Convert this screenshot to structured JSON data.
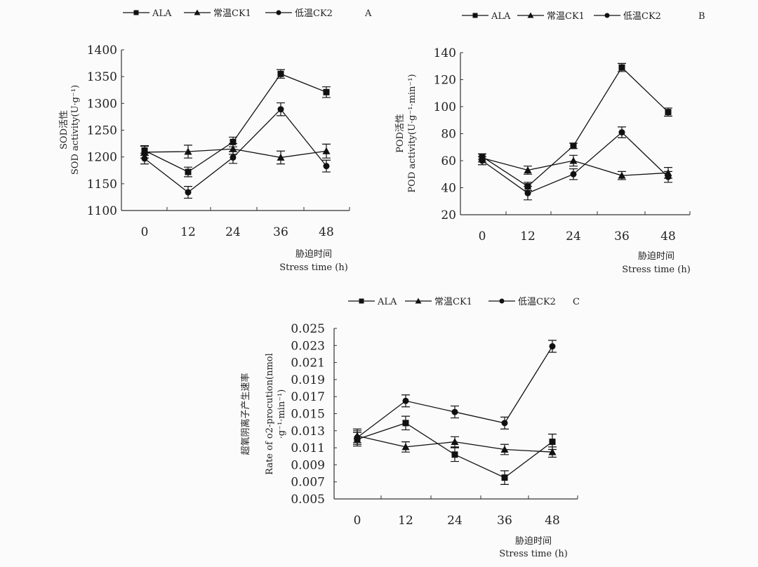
{
  "chart_data": [
    {
      "type": "line",
      "panel": "A",
      "ylabel": [
        "SOD活性",
        "SOD activity(U·g⁻¹)"
      ],
      "xlabel": [
        "胁迫时间",
        "Stress time (h)"
      ],
      "categories": [
        "0",
        "12",
        "24",
        "36",
        "48"
      ],
      "ylim": [
        1100,
        1400
      ],
      "yticks": [
        "1100",
        "1150",
        "1200",
        "1250",
        "1300",
        "1350",
        "1400"
      ],
      "series": [
        {
          "name": "ALA",
          "marker": "square",
          "values": [
            1212,
            1172,
            1228,
            1355,
            1321
          ],
          "errors": [
            9,
            9,
            9,
            8,
            10
          ]
        },
        {
          "name": "常温CK1",
          "marker": "triangle",
          "values": [
            1209,
            1210,
            1215,
            1199,
            1211
          ],
          "errors": [
            11,
            12,
            10,
            12,
            13
          ]
        },
        {
          "name": "低温CK2",
          "marker": "circle",
          "values": [
            1197,
            1134,
            1199,
            1289,
            1183
          ],
          "errors": [
            10,
            11,
            11,
            12,
            11
          ]
        }
      ]
    },
    {
      "type": "line",
      "panel": "B",
      "ylabel": [
        "POD活性",
        "POD activity(U·g⁻¹·min⁻¹)"
      ],
      "xlabel": [
        "胁迫时间",
        "Stress time (h)"
      ],
      "categories": [
        "0",
        "12",
        "24",
        "36",
        "48"
      ],
      "ylim": [
        20,
        140
      ],
      "yticks": [
        "20",
        "40",
        "60",
        "80",
        "100",
        "120",
        "140"
      ],
      "series": [
        {
          "name": "ALA",
          "marker": "square",
          "values": [
            63,
            41,
            71,
            129,
            96
          ],
          "errors": [
            2,
            3,
            2,
            3,
            3
          ]
        },
        {
          "name": "常温CK1",
          "marker": "triangle",
          "values": [
            62,
            53,
            60,
            49,
            51
          ],
          "errors": [
            3,
            3,
            4,
            3,
            4
          ]
        },
        {
          "name": "低温CK2",
          "marker": "circle",
          "values": [
            60,
            36,
            50,
            81,
            48
          ],
          "errors": [
            3,
            5,
            4,
            4,
            4
          ]
        }
      ]
    },
    {
      "type": "line",
      "panel": "C",
      "ylabel": [
        "超氧阴离子产生速率",
        "Rate of o2-procution(nmol",
        "·g⁻¹·min⁻¹)"
      ],
      "xlabel": [
        "胁迫时间",
        "Stress time (h)"
      ],
      "categories": [
        "0",
        "12",
        "24",
        "36",
        "48"
      ],
      "ylim": [
        0.005,
        0.025
      ],
      "yticks": [
        "0.005",
        "0.007",
        "0.009",
        "0.011",
        "0.013",
        "0.015",
        "0.017",
        "0.019",
        "0.021",
        "0.023",
        "0.025"
      ],
      "series": [
        {
          "name": "ALA",
          "marker": "square",
          "values": [
            0.012,
            0.0139,
            0.0102,
            0.0075,
            0.0117
          ],
          "errors": [
            0.0008,
            0.0008,
            0.0008,
            0.0008,
            0.0009
          ]
        },
        {
          "name": "常温CK1",
          "marker": "triangle",
          "values": [
            0.0124,
            0.0111,
            0.0117,
            0.0108,
            0.0105
          ],
          "errors": [
            0.0008,
            0.0006,
            0.0006,
            0.0006,
            0.0006
          ]
        },
        {
          "name": "低温CK2",
          "marker": "circle",
          "values": [
            0.0122,
            0.0165,
            0.0152,
            0.0139,
            0.0229
          ],
          "errors": [
            0.0008,
            0.0007,
            0.0007,
            0.0007,
            0.0007
          ]
        }
      ]
    }
  ]
}
